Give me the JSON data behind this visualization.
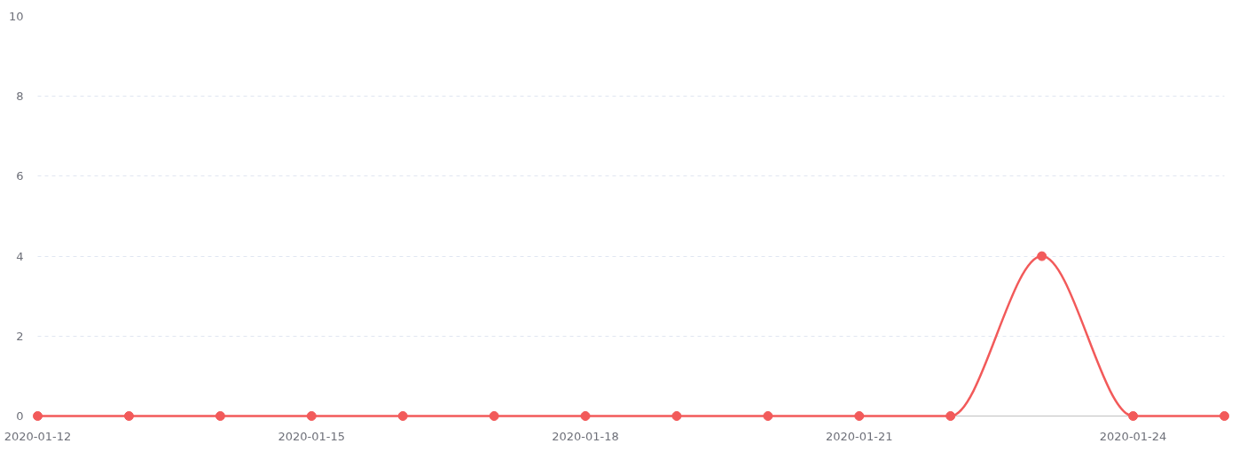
{
  "chart_data": {
    "type": "line",
    "x": [
      "2020-01-12",
      "2020-01-13",
      "2020-01-14",
      "2020-01-15",
      "2020-01-16",
      "2020-01-17",
      "2020-01-18",
      "2020-01-19",
      "2020-01-20",
      "2020-01-21",
      "2020-01-22",
      "2020-01-23",
      "2020-01-24",
      "2020-01-25"
    ],
    "series": [
      {
        "color": "#f25a5a",
        "values": [
          0,
          0,
          0,
          0,
          0,
          0,
          0,
          0,
          0,
          0,
          0,
          4,
          0,
          0
        ]
      }
    ],
    "xlim": [
      "2020-01-12",
      "2020-01-25"
    ],
    "xticks": [
      "2020-01-12",
      "2020-01-15",
      "2020-01-18",
      "2020-01-21",
      "2020-01-24"
    ],
    "ylim": [
      0,
      10
    ],
    "yticks": [
      0,
      2,
      4,
      6,
      8,
      10
    ],
    "grid": "y",
    "marker": "circle",
    "line_style": "solid"
  }
}
